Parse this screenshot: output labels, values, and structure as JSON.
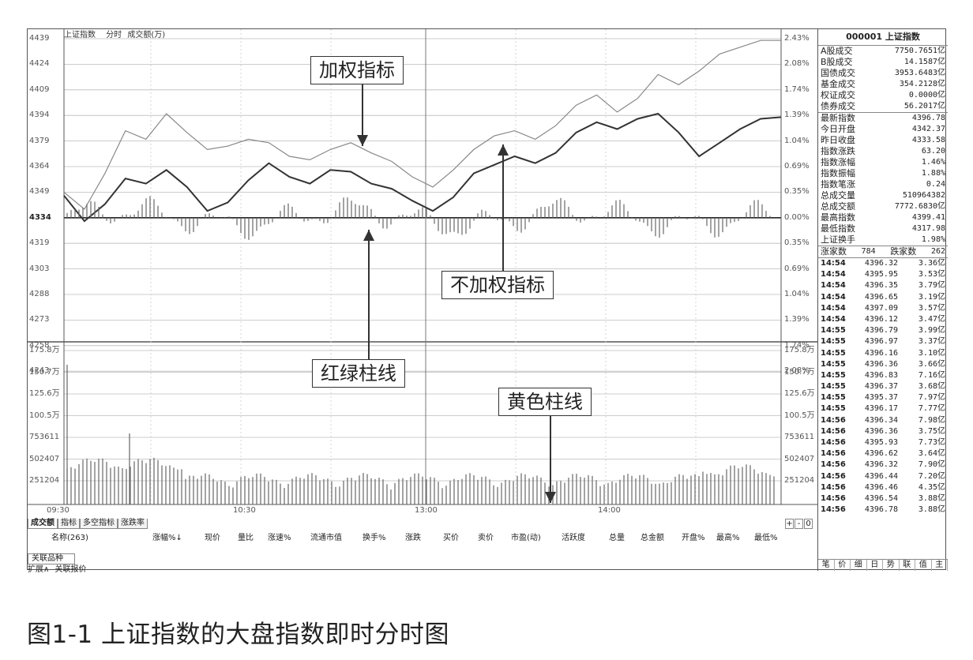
{
  "chart_panel": {
    "title": "上证指数",
    "mode": "分时",
    "indicator": "成交额(万)",
    "price_ticks": [
      "4439",
      "4424",
      "4409",
      "4394",
      "4379",
      "4364",
      "4349",
      "4334",
      "4319",
      "4303",
      "4288",
      "4273",
      "4258",
      "4243"
    ],
    "pct_ticks": [
      "2.43%",
      "2.08%",
      "1.74%",
      "1.39%",
      "1.04%",
      "0.69%",
      "0.35%",
      "0.00%",
      "0.35%",
      "0.69%",
      "1.04%",
      "1.39%",
      "1.74%",
      "2.08%"
    ],
    "vol_ticks": [
      "175.8万",
      "150.7万",
      "125.6万",
      "100.5万",
      "753611",
      "502407",
      "251204"
    ],
    "time_ticks": [
      "09:30",
      "10:30",
      "13:00",
      "14:00"
    ]
  },
  "callouts": {
    "weighted": "加权指标",
    "unweighted": "不加权指标",
    "redgreen": "红绿柱线",
    "yellow": "黄色柱线"
  },
  "tabs": [
    "成交额",
    "指标",
    "多空指标",
    "涨跌率"
  ],
  "controls": [
    "+",
    "-",
    "0"
  ],
  "table_header": {
    "name": "名称(263)",
    "cols": [
      "涨幅%↓",
      "现价",
      "量比",
      "涨速%",
      "流通市值",
      "换手%",
      "涨跌",
      "买价",
      "卖价",
      "市盈(动)",
      "活跃度",
      "总量",
      "总金额",
      "开盘%",
      "最高%",
      "最低%"
    ]
  },
  "bottom_tabs": {
    "related": "关联品种",
    "expand": "扩展∧",
    "quote": "关联报价"
  },
  "right_panel": {
    "title": "000001 上证指数",
    "turnover": [
      {
        "k": "A股成交",
        "v": "7750.7651亿"
      },
      {
        "k": "B股成交",
        "v": "14.1587亿"
      },
      {
        "k": "国债成交",
        "v": "3953.6483亿"
      },
      {
        "k": "基金成交",
        "v": "354.2128亿"
      },
      {
        "k": "权证成交",
        "v": "0.0000亿"
      },
      {
        "k": "债券成交",
        "v": "56.2017亿"
      }
    ],
    "stats": [
      {
        "k": "最新指数",
        "v": "4396.78"
      },
      {
        "k": "今日开盘",
        "v": "4342.37"
      },
      {
        "k": "昨日收盘",
        "v": "4333.58"
      },
      {
        "k": "指数涨跌",
        "v": "63.20"
      },
      {
        "k": "指数涨幅",
        "v": "1.46%"
      },
      {
        "k": "指数振幅",
        "v": "1.88%"
      },
      {
        "k": "指数笔涨",
        "v": "0.24"
      },
      {
        "k": "总成交量",
        "v": "510964382"
      },
      {
        "k": "总成交额",
        "v": "7772.6830亿"
      },
      {
        "k": "最高指数",
        "v": "4399.41"
      },
      {
        "k": "最低指数",
        "v": "4317.98"
      },
      {
        "k": "上证换手",
        "v": "1.98%"
      }
    ],
    "breadth": {
      "up_label": "涨家数",
      "up": "784",
      "down_label": "跌家数",
      "down": "262"
    },
    "ticks": [
      {
        "t": "14:54",
        "p": "4396.32",
        "a": "3.36亿"
      },
      {
        "t": "14:54",
        "p": "4395.95",
        "a": "3.53亿"
      },
      {
        "t": "14:54",
        "p": "4396.35",
        "a": "3.79亿"
      },
      {
        "t": "14:54",
        "p": "4396.65",
        "a": "3.19亿"
      },
      {
        "t": "14:54",
        "p": "4397.09",
        "a": "3.57亿"
      },
      {
        "t": "14:54",
        "p": "4396.12",
        "a": "3.47亿"
      },
      {
        "t": "14:55",
        "p": "4396.79",
        "a": "3.99亿"
      },
      {
        "t": "14:55",
        "p": "4396.97",
        "a": "3.37亿"
      },
      {
        "t": "14:55",
        "p": "4396.16",
        "a": "3.10亿"
      },
      {
        "t": "14:55",
        "p": "4396.36",
        "a": "3.66亿"
      },
      {
        "t": "14:55",
        "p": "4396.83",
        "a": "7.16亿"
      },
      {
        "t": "14:55",
        "p": "4396.37",
        "a": "3.68亿"
      },
      {
        "t": "14:55",
        "p": "4395.37",
        "a": "7.97亿"
      },
      {
        "t": "14:55",
        "p": "4396.17",
        "a": "7.77亿"
      },
      {
        "t": "14:56",
        "p": "4396.34",
        "a": "7.98亿"
      },
      {
        "t": "14:56",
        "p": "4396.36",
        "a": "3.75亿"
      },
      {
        "t": "14:56",
        "p": "4395.93",
        "a": "7.73亿"
      },
      {
        "t": "14:56",
        "p": "4396.62",
        "a": "3.64亿"
      },
      {
        "t": "14:56",
        "p": "4396.32",
        "a": "7.90亿"
      },
      {
        "t": "14:56",
        "p": "4396.44",
        "a": "7.20亿"
      },
      {
        "t": "14:56",
        "p": "4396.46",
        "a": "4.35亿"
      },
      {
        "t": "14:56",
        "p": "4396.54",
        "a": "3.88亿"
      },
      {
        "t": "14:56",
        "p": "4396.78",
        "a": "3.88亿"
      }
    ],
    "bottom_tabs": [
      "笔",
      "价",
      "细",
      "日",
      "势",
      "联",
      "值",
      "主"
    ]
  },
  "caption": "图1-1 上证指数的大盘指数即时分时图",
  "chart_data": {
    "type": "line",
    "series": [
      {
        "values": [
          4349,
          4339,
          4360,
          4385,
          4380,
          4395,
          4384,
          4374,
          4376,
          4380,
          4378,
          4370,
          4368,
          4374,
          4378,
          4372,
          4367,
          4358,
          4352,
          4362,
          4374,
          4382,
          4385,
          4380,
          4388,
          4400,
          4406,
          4396,
          4404,
          4418,
          4412,
          4420,
          4430,
          4434,
          4438,
          4438
        ]
      },
      {
        "values": [
          4347,
          4332,
          4342,
          4357,
          4354,
          4362,
          4352,
          4338,
          4343,
          4356,
          4366,
          4358,
          4354,
          4362,
          4361,
          4354,
          4351,
          4344,
          4338,
          4346,
          4360,
          4365,
          4370,
          4366,
          4372,
          4384,
          4390,
          4386,
          4392,
          4395,
          4384,
          4370,
          4378,
          4386,
          4392,
          4393
        ]
      }
    ],
    "x": [
      "09:30",
      "",
      "",
      "",
      "",
      "",
      "",
      "",
      "",
      "10:30",
      "",
      "",
      "",
      "",
      "",
      "",
      "",
      "",
      "13:00",
      "",
      "",
      "",
      "",
      "",
      "",
      "",
      "",
      "14:00",
      "",
      "",
      "",
      "",
      "",
      "",
      "",
      ""
    ],
    "baseline": 4334,
    "ylim": [
      4228,
      4439
    ],
    "colors": {
      "weighted": "#888888",
      "unweighted": "#333333",
      "bars": "#555555"
    }
  }
}
